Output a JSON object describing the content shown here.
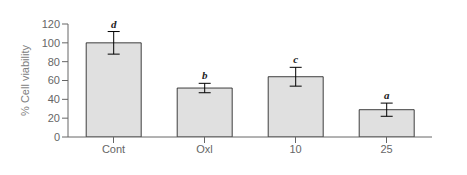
{
  "chart_data": {
    "type": "bar",
    "categories": [
      "Cont",
      "Oxl",
      "10",
      "25"
    ],
    "values": [
      100,
      52,
      64,
      29
    ],
    "errors": [
      12,
      5,
      10,
      7
    ],
    "annotations": [
      "d",
      "b",
      "c",
      "a"
    ],
    "ylabel": "% Cell viability",
    "ylim": [
      0,
      120
    ],
    "yticks": [
      0,
      20,
      40,
      60,
      80,
      100,
      120
    ],
    "color": "#e0e0e0",
    "grid": false
  }
}
